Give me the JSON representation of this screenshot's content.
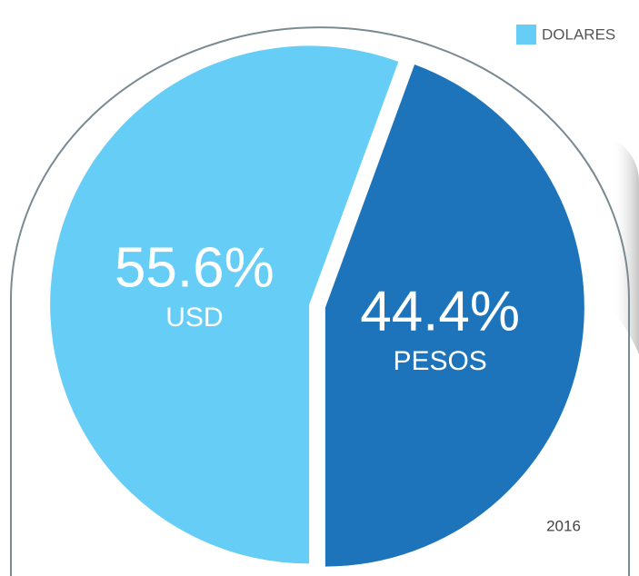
{
  "chart_data": {
    "type": "pie",
    "categories": [
      "USD",
      "PESOS"
    ],
    "values": [
      55.6,
      44.4
    ],
    "value_labels": [
      "55.6%",
      "44.4%"
    ],
    "colors": [
      "#66cef6",
      "#1d74bb"
    ],
    "legend": {
      "name": "DOLARES",
      "color": "#66cef6",
      "corner": "top-right"
    },
    "annotation": "2016"
  }
}
